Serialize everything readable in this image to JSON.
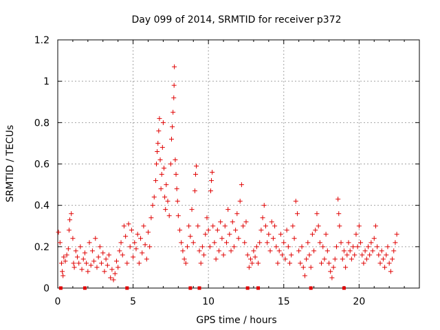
{
  "chart_data": {
    "type": "scatter",
    "title": "Day 099 of 2014, SRMTID for receiver p372",
    "xlabel": "GPS time / hours",
    "ylabel": "SRMTID / TECUs",
    "xlim": [
      0,
      24
    ],
    "ylim": [
      0,
      1.2
    ],
    "xticks": [
      0,
      5,
      10,
      15,
      20
    ],
    "yticks": [
      0,
      0.2,
      0.4,
      0.6,
      0.8,
      1,
      1.2
    ],
    "xtick_labels": [
      "0",
      "5",
      "10",
      "15",
      "20"
    ],
    "ytick_labels": [
      "0",
      "0.2",
      "0.4",
      "0.6",
      "0.8",
      "1",
      "1.2"
    ],
    "grid": true,
    "marker": "plus",
    "color": "#e00000",
    "series": [
      {
        "name": "SRMTID",
        "points": [
          [
            0.05,
            0.27
          ],
          [
            0.15,
            0.22
          ],
          [
            0.25,
            0.12
          ],
          [
            0.3,
            0.08
          ],
          [
            0.35,
            0.06
          ],
          [
            0.4,
            0.15
          ],
          [
            0.5,
            0.13
          ],
          [
            0.6,
            0.16
          ],
          [
            0.7,
            0.19
          ],
          [
            0.75,
            0.28
          ],
          [
            0.8,
            0.33
          ],
          [
            0.9,
            0.36
          ],
          [
            1.0,
            0.24
          ],
          [
            1.05,
            0.12
          ],
          [
            1.1,
            0.1
          ],
          [
            1.2,
            0.18
          ],
          [
            1.3,
            0.15
          ],
          [
            1.4,
            0.12
          ],
          [
            1.5,
            0.2
          ],
          [
            1.6,
            0.09
          ],
          [
            1.7,
            0.14
          ],
          [
            1.8,
            0.17
          ],
          [
            1.9,
            0.12
          ],
          [
            2.0,
            0.08
          ],
          [
            2.1,
            0.22
          ],
          [
            2.2,
            0.11
          ],
          [
            2.3,
            0.18
          ],
          [
            2.4,
            0.13
          ],
          [
            2.5,
            0.24
          ],
          [
            2.6,
            0.1
          ],
          [
            2.7,
            0.15
          ],
          [
            2.8,
            0.2
          ],
          [
            2.9,
            0.12
          ],
          [
            3.0,
            0.17
          ],
          [
            3.1,
            0.08
          ],
          [
            3.2,
            0.14
          ],
          [
            3.3,
            0.11
          ],
          [
            3.4,
            0.16
          ],
          [
            3.5,
            0.05
          ],
          [
            3.6,
            0.09
          ],
          [
            3.7,
            0.04
          ],
          [
            3.8,
            0.07
          ],
          [
            3.9,
            0.13
          ],
          [
            4.0,
            0.1
          ],
          [
            4.1,
            0.18
          ],
          [
            4.2,
            0.22
          ],
          [
            4.3,
            0.16
          ],
          [
            4.4,
            0.3
          ],
          [
            4.5,
            0.25
          ],
          [
            4.6,
            0.12
          ],
          [
            4.7,
            0.31
          ],
          [
            4.8,
            0.2
          ],
          [
            4.9,
            0.28
          ],
          [
            5.0,
            0.15
          ],
          [
            5.1,
            0.22
          ],
          [
            5.2,
            0.19
          ],
          [
            5.3,
            0.26
          ],
          [
            5.4,
            0.12
          ],
          [
            5.5,
            0.24
          ],
          [
            5.6,
            0.17
          ],
          [
            5.7,
            0.3
          ],
          [
            5.8,
            0.21
          ],
          [
            5.9,
            0.14
          ],
          [
            6.0,
            0.27
          ],
          [
            6.1,
            0.2
          ],
          [
            6.2,
            0.34
          ],
          [
            6.3,
            0.4
          ],
          [
            6.4,
            0.44
          ],
          [
            6.5,
            0.52
          ],
          [
            6.55,
            0.6
          ],
          [
            6.6,
            0.66
          ],
          [
            6.65,
            0.7
          ],
          [
            6.7,
            0.76
          ],
          [
            6.75,
            0.82
          ],
          [
            6.8,
            0.62
          ],
          [
            6.85,
            0.48
          ],
          [
            6.9,
            0.55
          ],
          [
            6.95,
            0.68
          ],
          [
            7.0,
            0.8
          ],
          [
            7.05,
            0.58
          ],
          [
            7.1,
            0.44
          ],
          [
            7.15,
            0.38
          ],
          [
            7.2,
            0.5
          ],
          [
            7.3,
            0.42
          ],
          [
            7.4,
            0.35
          ],
          [
            7.5,
            0.6
          ],
          [
            7.55,
            0.72
          ],
          [
            7.6,
            0.78
          ],
          [
            7.65,
            0.85
          ],
          [
            7.7,
            0.92
          ],
          [
            7.72,
            0.98
          ],
          [
            7.74,
            1.07
          ],
          [
            7.8,
            0.62
          ],
          [
            7.85,
            0.55
          ],
          [
            7.9,
            0.48
          ],
          [
            7.95,
            0.42
          ],
          [
            8.0,
            0.35
          ],
          [
            8.1,
            0.28
          ],
          [
            8.2,
            0.22
          ],
          [
            8.3,
            0.18
          ],
          [
            8.4,
            0.14
          ],
          [
            8.5,
            0.12
          ],
          [
            8.6,
            0.2
          ],
          [
            8.7,
            0.3
          ],
          [
            8.8,
            0.25
          ],
          [
            8.9,
            0.38
          ],
          [
            9.0,
            0.22
          ],
          [
            9.1,
            0.47
          ],
          [
            9.15,
            0.55
          ],
          [
            9.2,
            0.59
          ],
          [
            9.3,
            0.3
          ],
          [
            9.4,
            0.18
          ],
          [
            9.5,
            0.12
          ],
          [
            9.6,
            0.2
          ],
          [
            9.7,
            0.16
          ],
          [
            9.8,
            0.26
          ],
          [
            9.9,
            0.34
          ],
          [
            10.0,
            0.28
          ],
          [
            10.1,
            0.2
          ],
          [
            10.15,
            0.47
          ],
          [
            10.2,
            0.52
          ],
          [
            10.25,
            0.56
          ],
          [
            10.3,
            0.3
          ],
          [
            10.4,
            0.22
          ],
          [
            10.5,
            0.14
          ],
          [
            10.6,
            0.28
          ],
          [
            10.7,
            0.18
          ],
          [
            10.8,
            0.32
          ],
          [
            10.9,
            0.24
          ],
          [
            11.0,
            0.16
          ],
          [
            11.1,
            0.3
          ],
          [
            11.2,
            0.22
          ],
          [
            11.3,
            0.38
          ],
          [
            11.4,
            0.26
          ],
          [
            11.5,
            0.18
          ],
          [
            11.6,
            0.32
          ],
          [
            11.7,
            0.2
          ],
          [
            11.8,
            0.28
          ],
          [
            11.9,
            0.36
          ],
          [
            12.0,
            0.24
          ],
          [
            12.1,
            0.42
          ],
          [
            12.2,
            0.5
          ],
          [
            12.3,
            0.3
          ],
          [
            12.4,
            0.22
          ],
          [
            12.5,
            0.32
          ],
          [
            12.6,
            0.16
          ],
          [
            12.7,
            0.1
          ],
          [
            12.8,
            0.14
          ],
          [
            12.9,
            0.12
          ],
          [
            13.0,
            0.18
          ],
          [
            13.1,
            0.15
          ],
          [
            13.2,
            0.2
          ],
          [
            13.3,
            0.12
          ],
          [
            13.4,
            0.22
          ],
          [
            13.5,
            0.28
          ],
          [
            13.6,
            0.34
          ],
          [
            13.7,
            0.4
          ],
          [
            13.8,
            0.3
          ],
          [
            13.9,
            0.22
          ],
          [
            14.0,
            0.26
          ],
          [
            14.1,
            0.18
          ],
          [
            14.2,
            0.32
          ],
          [
            14.3,
            0.24
          ],
          [
            14.4,
            0.3
          ],
          [
            14.5,
            0.2
          ],
          [
            14.6,
            0.12
          ],
          [
            14.7,
            0.18
          ],
          [
            14.8,
            0.26
          ],
          [
            14.9,
            0.16
          ],
          [
            15.0,
            0.22
          ],
          [
            15.1,
            0.14
          ],
          [
            15.2,
            0.28
          ],
          [
            15.3,
            0.2
          ],
          [
            15.4,
            0.12
          ],
          [
            15.5,
            0.16
          ],
          [
            15.6,
            0.3
          ],
          [
            15.7,
            0.24
          ],
          [
            15.8,
            0.42
          ],
          [
            15.9,
            0.36
          ],
          [
            16.0,
            0.18
          ],
          [
            16.1,
            0.12
          ],
          [
            16.2,
            0.2
          ],
          [
            16.3,
            0.1
          ],
          [
            16.4,
            0.06
          ],
          [
            16.5,
            0.14
          ],
          [
            16.6,
            0.22
          ],
          [
            16.7,
            0.16
          ],
          [
            16.8,
            0.1
          ],
          [
            16.9,
            0.26
          ],
          [
            17.0,
            0.18
          ],
          [
            17.1,
            0.28
          ],
          [
            17.2,
            0.36
          ],
          [
            17.3,
            0.3
          ],
          [
            17.4,
            0.22
          ],
          [
            17.5,
            0.12
          ],
          [
            17.6,
            0.2
          ],
          [
            17.7,
            0.14
          ],
          [
            17.8,
            0.26
          ],
          [
            17.9,
            0.18
          ],
          [
            18.0,
            0.12
          ],
          [
            18.1,
            0.08
          ],
          [
            18.2,
            0.05
          ],
          [
            18.3,
            0.1
          ],
          [
            18.4,
            0.14
          ],
          [
            18.5,
            0.2
          ],
          [
            18.6,
            0.43
          ],
          [
            18.65,
            0.36
          ],
          [
            18.7,
            0.3
          ],
          [
            18.8,
            0.22
          ],
          [
            18.9,
            0.14
          ],
          [
            19.0,
            0.18
          ],
          [
            19.1,
            0.1
          ],
          [
            19.2,
            0.16
          ],
          [
            19.3,
            0.22
          ],
          [
            19.4,
            0.18
          ],
          [
            19.5,
            0.14
          ],
          [
            19.6,
            0.2
          ],
          [
            19.7,
            0.16
          ],
          [
            19.8,
            0.26
          ],
          [
            19.9,
            0.2
          ],
          [
            20.0,
            0.3
          ],
          [
            20.1,
            0.22
          ],
          [
            20.2,
            0.16
          ],
          [
            20.3,
            0.12
          ],
          [
            20.4,
            0.18
          ],
          [
            20.5,
            0.14
          ],
          [
            20.6,
            0.2
          ],
          [
            20.7,
            0.16
          ],
          [
            20.8,
            0.22
          ],
          [
            20.9,
            0.18
          ],
          [
            21.0,
            0.24
          ],
          [
            21.1,
            0.3
          ],
          [
            21.2,
            0.2
          ],
          [
            21.3,
            0.16
          ],
          [
            21.4,
            0.12
          ],
          [
            21.5,
            0.18
          ],
          [
            21.6,
            0.14
          ],
          [
            21.7,
            0.1
          ],
          [
            21.8,
            0.16
          ],
          [
            21.9,
            0.2
          ],
          [
            22.0,
            0.12
          ],
          [
            22.1,
            0.08
          ],
          [
            22.2,
            0.14
          ],
          [
            22.3,
            0.18
          ],
          [
            22.4,
            0.22
          ],
          [
            22.5,
            0.26
          ]
        ]
      }
    ],
    "baseline_markers_x": [
      0.2,
      1.8,
      4.6,
      8.8,
      9.4,
      12.6,
      13.3,
      16.8,
      19.0
    ]
  }
}
